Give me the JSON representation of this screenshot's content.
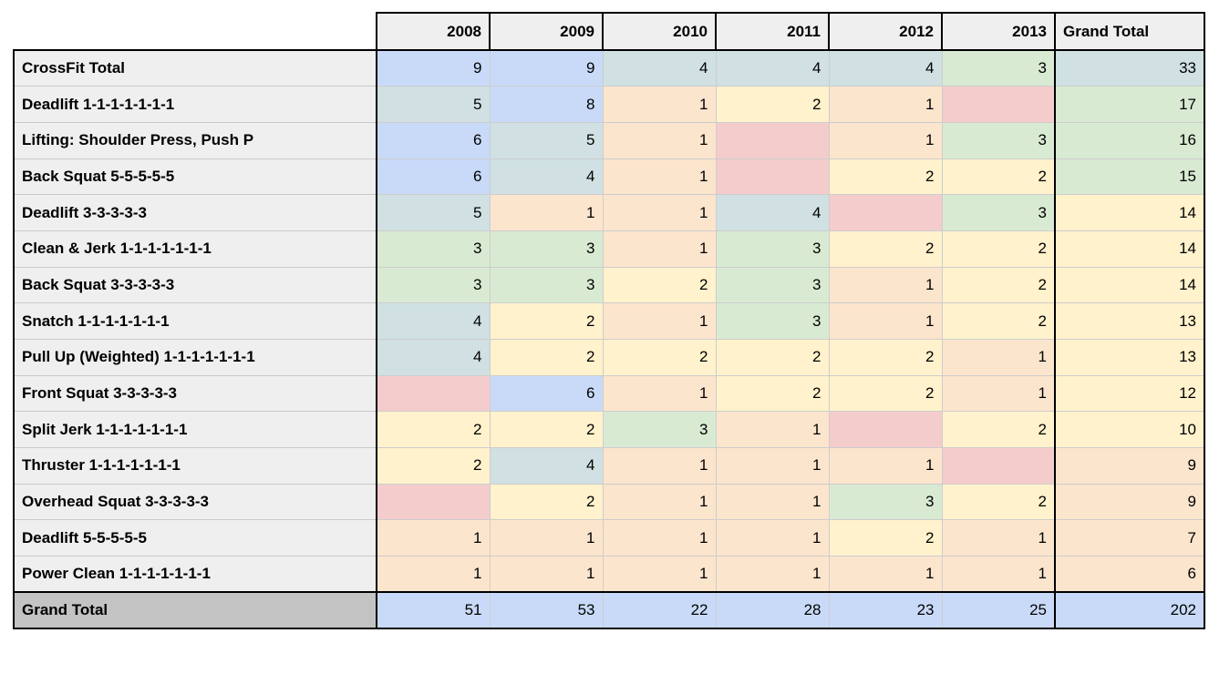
{
  "chart_data": {
    "type": "table",
    "title": "",
    "columns": [
      "2008",
      "2009",
      "2010",
      "2011",
      "2012",
      "2013",
      "Grand Total"
    ],
    "row_labels": [
      "CrossFit Total",
      "Deadlift 1-1-1-1-1-1-1",
      "Lifting: Shoulder Press, Push P",
      "Back Squat 5-5-5-5-5",
      "Deadlift 3-3-3-3-3",
      "Clean & Jerk 1-1-1-1-1-1-1",
      "Back Squat 3-3-3-3-3",
      "Snatch 1-1-1-1-1-1-1",
      "Pull Up (Weighted) 1-1-1-1-1-1-1",
      "Front Squat 3-3-3-3-3",
      "Split Jerk 1-1-1-1-1-1-1",
      "Thruster 1-1-1-1-1-1-1",
      "Overhead Squat 3-3-3-3-3",
      "Deadlift 5-5-5-5-5",
      "Power Clean 1-1-1-1-1-1-1",
      "Grand Total"
    ],
    "values": [
      [
        9,
        9,
        4,
        4,
        4,
        3,
        33
      ],
      [
        5,
        8,
        1,
        2,
        1,
        null,
        17
      ],
      [
        6,
        5,
        1,
        null,
        1,
        3,
        16
      ],
      [
        6,
        4,
        1,
        null,
        2,
        2,
        15
      ],
      [
        5,
        1,
        1,
        4,
        null,
        3,
        14
      ],
      [
        3,
        3,
        1,
        3,
        2,
        2,
        14
      ],
      [
        3,
        3,
        2,
        3,
        1,
        2,
        14
      ],
      [
        4,
        2,
        1,
        3,
        1,
        2,
        13
      ],
      [
        4,
        2,
        2,
        2,
        2,
        1,
        13
      ],
      [
        null,
        6,
        1,
        2,
        2,
        1,
        12
      ],
      [
        2,
        2,
        3,
        1,
        null,
        2,
        10
      ],
      [
        2,
        4,
        1,
        1,
        1,
        null,
        9
      ],
      [
        null,
        2,
        1,
        1,
        3,
        2,
        9
      ],
      [
        1,
        1,
        1,
        1,
        2,
        1,
        7
      ],
      [
        1,
        1,
        1,
        1,
        1,
        1,
        6
      ],
      [
        51,
        53,
        22,
        28,
        23,
        25,
        202
      ]
    ]
  },
  "table": {
    "corner_label": "",
    "columns": [
      "2008",
      "2009",
      "2010",
      "2011",
      "2012",
      "2013",
      "Grand Total"
    ],
    "palette": {
      "blue": "#c9daf8",
      "teal": "#d0e0e3",
      "green": "#d9ead3",
      "yellow": "#fff2cc",
      "orange": "#fce5cd",
      "pink": "#f4cccc",
      "header_bg": "#efefef",
      "label_bg": "#efefef",
      "grand_label_bg": "#c3c3c3"
    },
    "rows": [
      {
        "label": "CrossFit Total",
        "values": [
          "9",
          "9",
          "4",
          "4",
          "4",
          "3",
          "33"
        ],
        "colors": [
          "blue",
          "blue",
          "teal",
          "teal",
          "teal",
          "green",
          "teal"
        ]
      },
      {
        "label": "Deadlift 1-1-1-1-1-1-1",
        "values": [
          "5",
          "8",
          "1",
          "2",
          "1",
          "",
          "17"
        ],
        "colors": [
          "teal",
          "blue",
          "orange",
          "yellow",
          "orange",
          "pink",
          "green"
        ]
      },
      {
        "label": "Lifting: Shoulder Press, Push P",
        "values": [
          "6",
          "5",
          "1",
          "",
          "1",
          "3",
          "16"
        ],
        "colors": [
          "blue",
          "teal",
          "orange",
          "pink",
          "orange",
          "green",
          "green"
        ]
      },
      {
        "label": "Back Squat 5-5-5-5-5",
        "values": [
          "6",
          "4",
          "1",
          "",
          "2",
          "2",
          "15"
        ],
        "colors": [
          "blue",
          "teal",
          "orange",
          "pink",
          "yellow",
          "yellow",
          "green"
        ]
      },
      {
        "label": "Deadlift 3-3-3-3-3",
        "values": [
          "5",
          "1",
          "1",
          "4",
          "",
          "3",
          "14"
        ],
        "colors": [
          "teal",
          "orange",
          "orange",
          "teal",
          "pink",
          "green",
          "yellow"
        ]
      },
      {
        "label": "Clean & Jerk 1-1-1-1-1-1-1",
        "values": [
          "3",
          "3",
          "1",
          "3",
          "2",
          "2",
          "14"
        ],
        "colors": [
          "green",
          "green",
          "orange",
          "green",
          "yellow",
          "yellow",
          "yellow"
        ]
      },
      {
        "label": "Back Squat 3-3-3-3-3",
        "values": [
          "3",
          "3",
          "2",
          "3",
          "1",
          "2",
          "14"
        ],
        "colors": [
          "green",
          "green",
          "yellow",
          "green",
          "orange",
          "yellow",
          "yellow"
        ]
      },
      {
        "label": "Snatch 1-1-1-1-1-1-1",
        "values": [
          "4",
          "2",
          "1",
          "3",
          "1",
          "2",
          "13"
        ],
        "colors": [
          "teal",
          "yellow",
          "orange",
          "green",
          "orange",
          "yellow",
          "yellow"
        ]
      },
      {
        "label": "Pull Up (Weighted) 1-1-1-1-1-1-1",
        "values": [
          "4",
          "2",
          "2",
          "2",
          "2",
          "1",
          "13"
        ],
        "colors": [
          "teal",
          "yellow",
          "yellow",
          "yellow",
          "yellow",
          "orange",
          "yellow"
        ]
      },
      {
        "label": "Front Squat 3-3-3-3-3",
        "values": [
          "",
          "6",
          "1",
          "2",
          "2",
          "1",
          "12"
        ],
        "colors": [
          "pink",
          "blue",
          "orange",
          "yellow",
          "yellow",
          "orange",
          "yellow"
        ]
      },
      {
        "label": "Split Jerk 1-1-1-1-1-1-1",
        "values": [
          "2",
          "2",
          "3",
          "1",
          "",
          "2",
          "10"
        ],
        "colors": [
          "yellow",
          "yellow",
          "green",
          "orange",
          "pink",
          "yellow",
          "yellow"
        ]
      },
      {
        "label": "Thruster 1-1-1-1-1-1-1",
        "values": [
          "2",
          "4",
          "1",
          "1",
          "1",
          "",
          "9"
        ],
        "colors": [
          "yellow",
          "teal",
          "orange",
          "orange",
          "orange",
          "pink",
          "orange"
        ]
      },
      {
        "label": "Overhead Squat 3-3-3-3-3",
        "values": [
          "",
          "2",
          "1",
          "1",
          "3",
          "2",
          "9"
        ],
        "colors": [
          "pink",
          "yellow",
          "orange",
          "orange",
          "green",
          "yellow",
          "orange"
        ]
      },
      {
        "label": "Deadlift 5-5-5-5-5",
        "values": [
          "1",
          "1",
          "1",
          "1",
          "2",
          "1",
          "7"
        ],
        "colors": [
          "orange",
          "orange",
          "orange",
          "orange",
          "yellow",
          "orange",
          "orange"
        ]
      },
      {
        "label": "Power Clean 1-1-1-1-1-1-1",
        "values": [
          "1",
          "1",
          "1",
          "1",
          "1",
          "1",
          "6"
        ],
        "colors": [
          "orange",
          "orange",
          "orange",
          "orange",
          "orange",
          "orange",
          "orange"
        ]
      }
    ],
    "grand_total_row": {
      "label": "Grand Total",
      "values": [
        "51",
        "53",
        "22",
        "28",
        "23",
        "25",
        "202"
      ],
      "colors": [
        "blue",
        "blue",
        "blue",
        "blue",
        "blue",
        "blue",
        "blue"
      ]
    }
  }
}
